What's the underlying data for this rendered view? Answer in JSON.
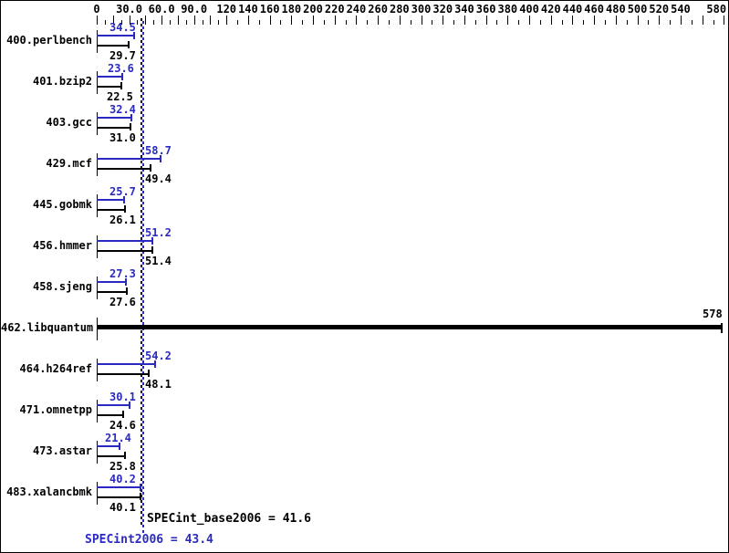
{
  "colors": {
    "peak_blue": "#2a2ac0",
    "base_black": "#000000",
    "background": "#ffffff"
  },
  "chart_data": {
    "type": "bar",
    "orientation": "horizontal",
    "title": "",
    "x_axis": {
      "min": 0,
      "max": 580,
      "tick_labels": [
        {
          "v": 0,
          "t": "0"
        },
        {
          "v": 30,
          "t": "30.0"
        },
        {
          "v": 60,
          "t": "60.0"
        },
        {
          "v": 90,
          "t": "90.0"
        },
        {
          "v": 120,
          "t": "120"
        },
        {
          "v": 140,
          "t": "140"
        },
        {
          "v": 160,
          "t": "160"
        },
        {
          "v": 180,
          "t": "180"
        },
        {
          "v": 200,
          "t": "200"
        },
        {
          "v": 220,
          "t": "220"
        },
        {
          "v": 240,
          "t": "240"
        },
        {
          "v": 260,
          "t": "260"
        },
        {
          "v": 280,
          "t": "280"
        },
        {
          "v": 300,
          "t": "300"
        },
        {
          "v": 320,
          "t": "320"
        },
        {
          "v": 340,
          "t": "340"
        },
        {
          "v": 360,
          "t": "360"
        },
        {
          "v": 380,
          "t": "380"
        },
        {
          "v": 400,
          "t": "400"
        },
        {
          "v": 420,
          "t": "420"
        },
        {
          "v": 440,
          "t": "440"
        },
        {
          "v": 460,
          "t": "460"
        },
        {
          "v": 480,
          "t": "480"
        },
        {
          "v": 500,
          "t": "500"
        },
        {
          "v": 520,
          "t": "520"
        },
        {
          "v": 540,
          "t": "540"
        },
        {
          "v": 580,
          "t": "580"
        }
      ]
    },
    "series": [
      {
        "name": "peak",
        "color": "#2a2ac0"
      },
      {
        "name": "base",
        "color": "#000000"
      }
    ],
    "benchmarks": [
      {
        "name": "400.perlbench",
        "peak": 34.5,
        "base": 29.7,
        "peak_label": "34.5",
        "base_label": "29.7"
      },
      {
        "name": "401.bzip2",
        "peak": 23.6,
        "base": 22.5,
        "peak_label": "23.6",
        "base_label": "22.5"
      },
      {
        "name": "403.gcc",
        "peak": 32.4,
        "base": 31.0,
        "peak_label": "32.4",
        "base_label": "31.0"
      },
      {
        "name": "429.mcf",
        "peak": 58.7,
        "base": 49.4,
        "peak_label": "58.7",
        "base_label": "49.4"
      },
      {
        "name": "445.gobmk",
        "peak": 25.7,
        "base": 26.1,
        "peak_label": "25.7",
        "base_label": "26.1"
      },
      {
        "name": "456.hmmer",
        "peak": 51.2,
        "base": 51.4,
        "peak_label": "51.2",
        "base_label": "51.4"
      },
      {
        "name": "458.sjeng",
        "peak": 27.3,
        "base": 27.6,
        "peak_label": "27.3",
        "base_label": "27.6"
      },
      {
        "name": "462.libquantum",
        "peak": 578,
        "base": 578,
        "single_bar": true,
        "value_label": "578"
      },
      {
        "name": "464.h264ref",
        "peak": 54.2,
        "base": 48.1,
        "peak_label": "54.2",
        "base_label": "48.1"
      },
      {
        "name": "471.omnetpp",
        "peak": 30.1,
        "base": 24.6,
        "peak_label": "30.1",
        "base_label": "24.6"
      },
      {
        "name": "473.astar",
        "peak": 21.4,
        "base": 25.8,
        "peak_label": "21.4",
        "base_label": "25.8"
      },
      {
        "name": "483.xalancbmk",
        "peak": 40.2,
        "base": 40.1,
        "peak_label": "40.2",
        "base_label": "40.1"
      }
    ],
    "means": {
      "base": {
        "text": "SPECint_base2006 = 41.6",
        "value": 41.6
      },
      "peak": {
        "text": "SPECint2006 = 43.4",
        "value": 43.4
      }
    }
  }
}
